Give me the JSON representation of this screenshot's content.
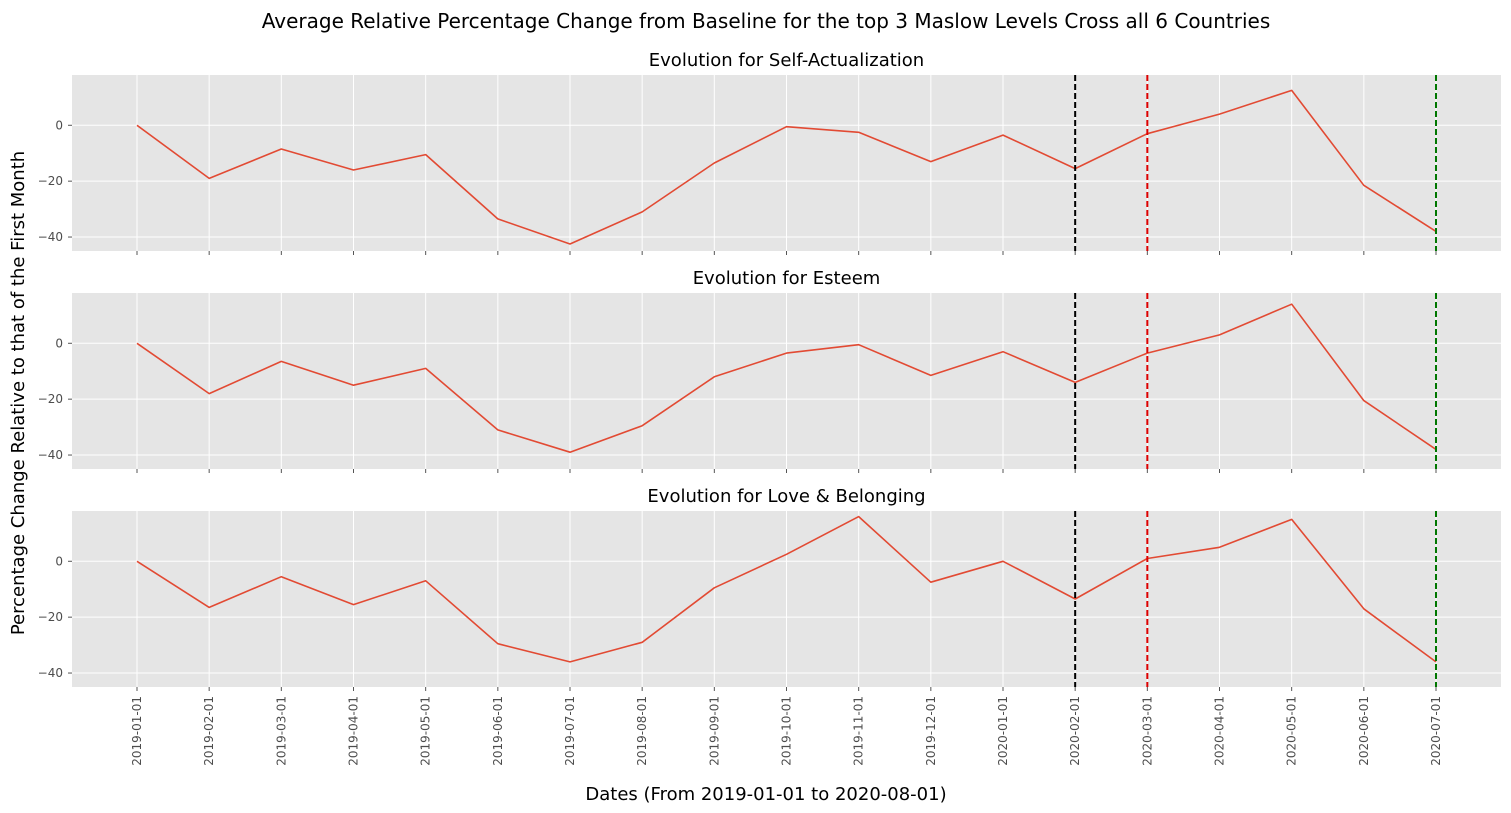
{
  "chart_data": {
    "type": "line",
    "suptitle": "Average Relative Percentage Change from Baseline for the top 3 Maslow Levels Cross all 6 Countries",
    "xlabel": "Dates (From 2019-01-01 to 2020-08-01)",
    "ylabel": "Percentage Change Relative to that of the First Month",
    "x": [
      "2019-01-01",
      "2019-02-01",
      "2019-03-01",
      "2019-04-01",
      "2019-05-01",
      "2019-06-01",
      "2019-07-01",
      "2019-08-01",
      "2019-09-01",
      "2019-10-01",
      "2019-11-01",
      "2019-12-01",
      "2020-01-01",
      "2020-02-01",
      "2020-03-01",
      "2020-04-01",
      "2020-05-01",
      "2020-06-01",
      "2020-07-01"
    ],
    "yticks": [
      0,
      -20,
      -40
    ],
    "ylim": [
      -45,
      18
    ],
    "grid": true,
    "line_color": "#E24A33",
    "vlines": [
      {
        "x": "2020-02-01",
        "color": "#000000"
      },
      {
        "x": "2020-03-01",
        "color": "#DD0000"
      },
      {
        "x": "2020-07-01",
        "color": "#007700"
      }
    ],
    "panels": [
      {
        "title": "Evolution for Self-Actualization",
        "values": [
          0,
          -19,
          -8.5,
          -16,
          -10.5,
          -33.5,
          -42.5,
          -31,
          -13.5,
          -0.5,
          -2.5,
          -13,
          -3.5,
          -15.5,
          -3,
          4,
          12.5,
          -21.5,
          -38
        ]
      },
      {
        "title": "Evolution for Esteem",
        "values": [
          0,
          -18,
          -6.5,
          -15,
          -9,
          -31,
          -39,
          -29.5,
          -12,
          -3.5,
          -0.5,
          -11.5,
          -3,
          -14,
          -3.5,
          3,
          14,
          -20.5,
          -38
        ]
      },
      {
        "title": "Evolution for Love & Belonging",
        "values": [
          0,
          -16.5,
          -5.5,
          -15.5,
          -7,
          -29.5,
          -36,
          -29,
          -9.5,
          2.5,
          16,
          -7.5,
          0,
          -13.5,
          1,
          5,
          15,
          -17,
          -36
        ]
      }
    ]
  }
}
